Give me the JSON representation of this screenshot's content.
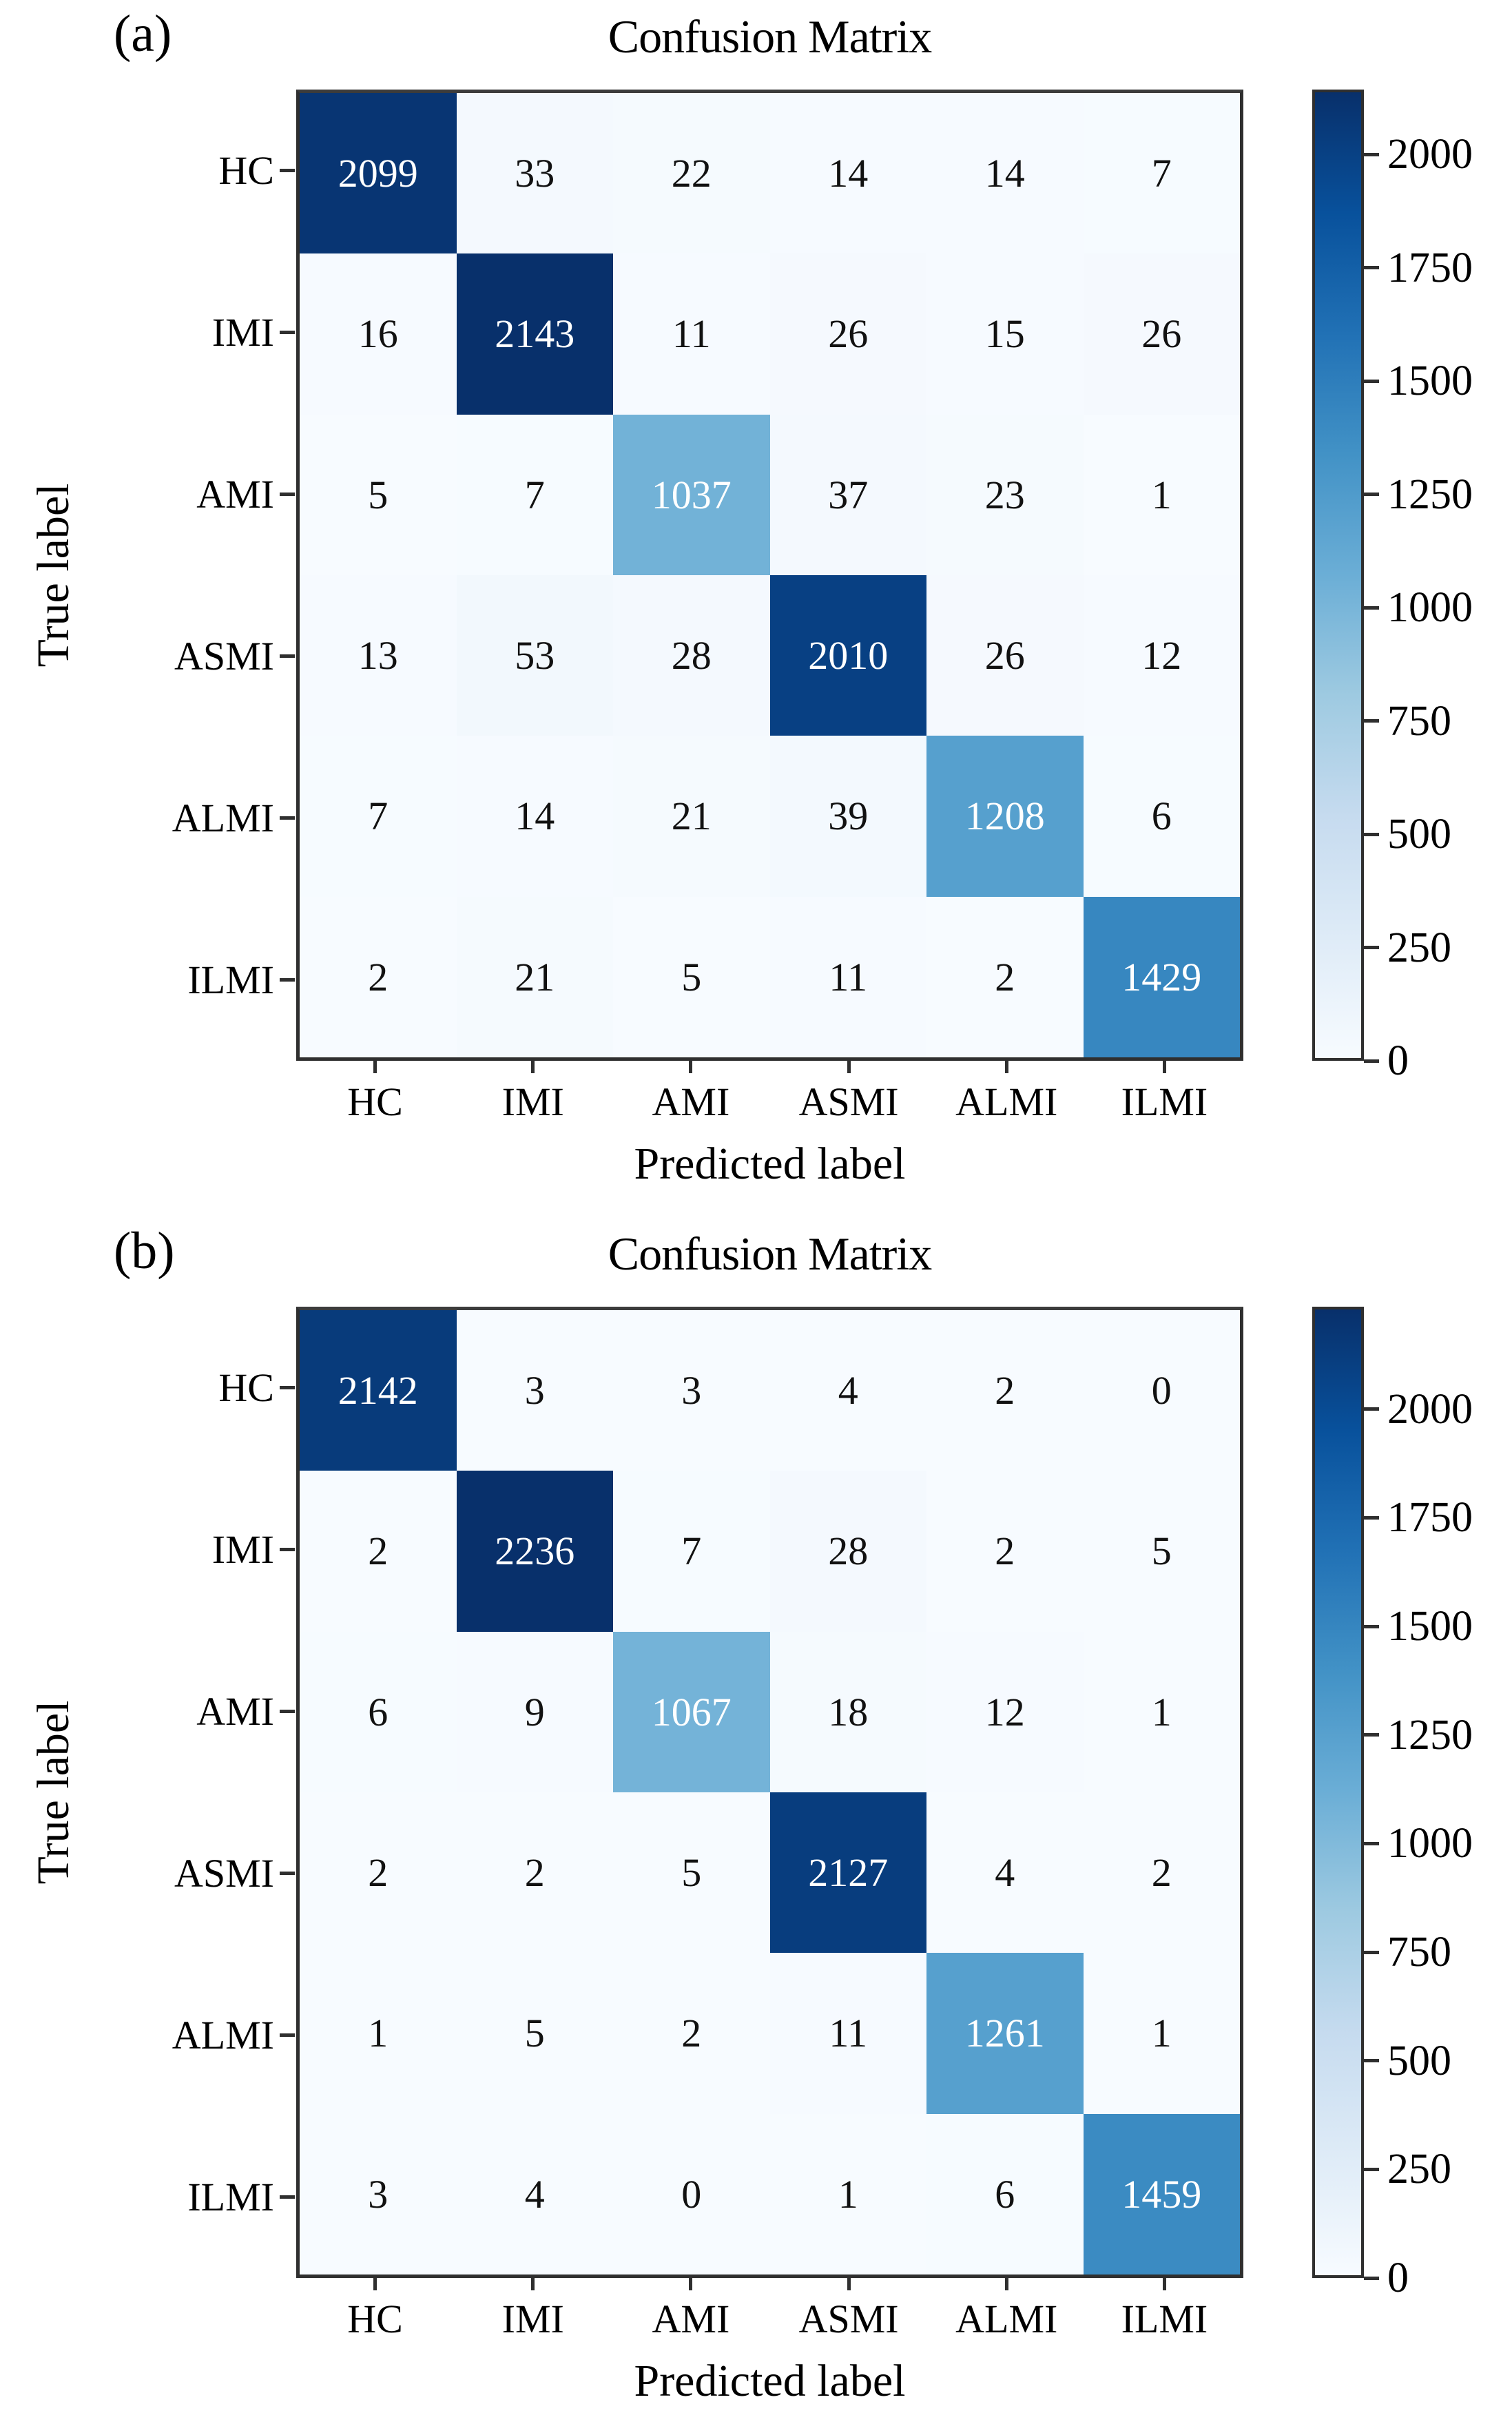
{
  "chart_data": [
    {
      "type": "heatmap",
      "panel": "(a)",
      "title": "Confusion Matrix",
      "xlabel": "Predicted label",
      "ylabel": "True label",
      "x_categories": [
        "HC",
        "IMI",
        "AMI",
        "ASMI",
        "ALMI",
        "ILMI"
      ],
      "y_categories": [
        "HC",
        "IMI",
        "AMI",
        "ASMI",
        "ALMI",
        "ILMI"
      ],
      "matrix": [
        [
          2099,
          33,
          22,
          14,
          14,
          7
        ],
        [
          16,
          2143,
          11,
          26,
          15,
          26
        ],
        [
          5,
          7,
          1037,
          37,
          23,
          1
        ],
        [
          13,
          53,
          28,
          2010,
          26,
          12
        ],
        [
          7,
          14,
          21,
          39,
          1208,
          6
        ],
        [
          2,
          21,
          5,
          11,
          2,
          1429
        ]
      ],
      "vmin": 0,
      "vmax": 2143,
      "colorbar_ticks": [
        0,
        250,
        500,
        750,
        1000,
        1250,
        1500,
        1750,
        2000
      ],
      "colormap": "Blues",
      "legend_position": "right-colorbar",
      "grid": false
    },
    {
      "type": "heatmap",
      "panel": "(b)",
      "title": "Confusion Matrix",
      "xlabel": "Predicted label",
      "ylabel": "True label",
      "x_categories": [
        "HC",
        "IMI",
        "AMI",
        "ASMI",
        "ALMI",
        "ILMI"
      ],
      "y_categories": [
        "HC",
        "IMI",
        "AMI",
        "ASMI",
        "ALMI",
        "ILMI"
      ],
      "matrix": [
        [
          2142,
          3,
          3,
          4,
          2,
          0
        ],
        [
          2,
          2236,
          7,
          28,
          2,
          5
        ],
        [
          6,
          9,
          1067,
          18,
          12,
          1
        ],
        [
          2,
          2,
          5,
          2127,
          4,
          2
        ],
        [
          1,
          5,
          2,
          11,
          1261,
          1
        ],
        [
          3,
          4,
          0,
          1,
          6,
          1459
        ]
      ],
      "vmin": 0,
      "vmax": 2236,
      "colorbar_ticks": [
        0,
        250,
        500,
        750,
        1000,
        1250,
        1500,
        1750,
        2000
      ],
      "colormap": "Blues",
      "legend_position": "right-colorbar",
      "grid": false
    }
  ],
  "colors": {
    "blues_stops": [
      "#f7fbff",
      "#deebf7",
      "#c6dbef",
      "#9ecae1",
      "#6baed6",
      "#4292c6",
      "#2171b5",
      "#08519c",
      "#08306b"
    ],
    "axis_border": "#2f2f2f",
    "tick_color": "#2f2f2f",
    "text_dark": "#111111",
    "text_light": "#ffffff",
    "background": "#ffffff"
  }
}
